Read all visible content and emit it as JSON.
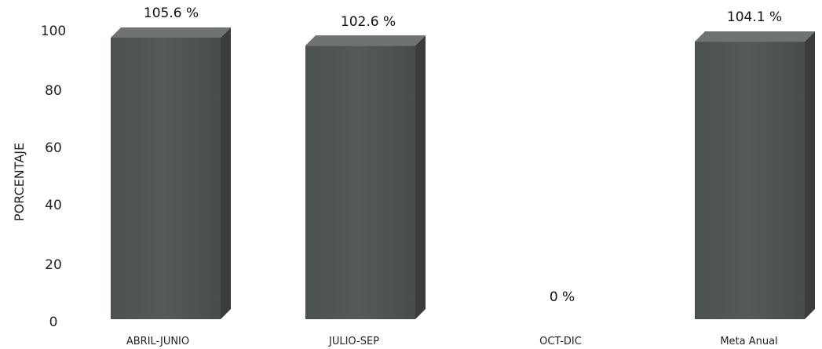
{
  "chart_data": {
    "type": "bar",
    "title": "",
    "xlabel": "",
    "ylabel": "PORCENTAJE",
    "categories": [
      "ABRIL-JUNIO",
      "JULIO-SEP",
      "OCT-DIC",
      "Meta Anual"
    ],
    "values": [
      105.6,
      102.6,
      0,
      104.1
    ],
    "data_labels": [
      "105.6 %",
      "102.6 %",
      "0 %",
      "104.1 %"
    ],
    "y_ticks": [
      "0",
      "20",
      "40",
      "60",
      "80",
      "100"
    ],
    "ylim": [
      0,
      100
    ],
    "grid": false,
    "legend": "none",
    "bar_style": "3d",
    "colors": {
      "bar_front": "#505452",
      "bar_top": "#6f7371",
      "bar_side": "#3a3d3c"
    }
  }
}
